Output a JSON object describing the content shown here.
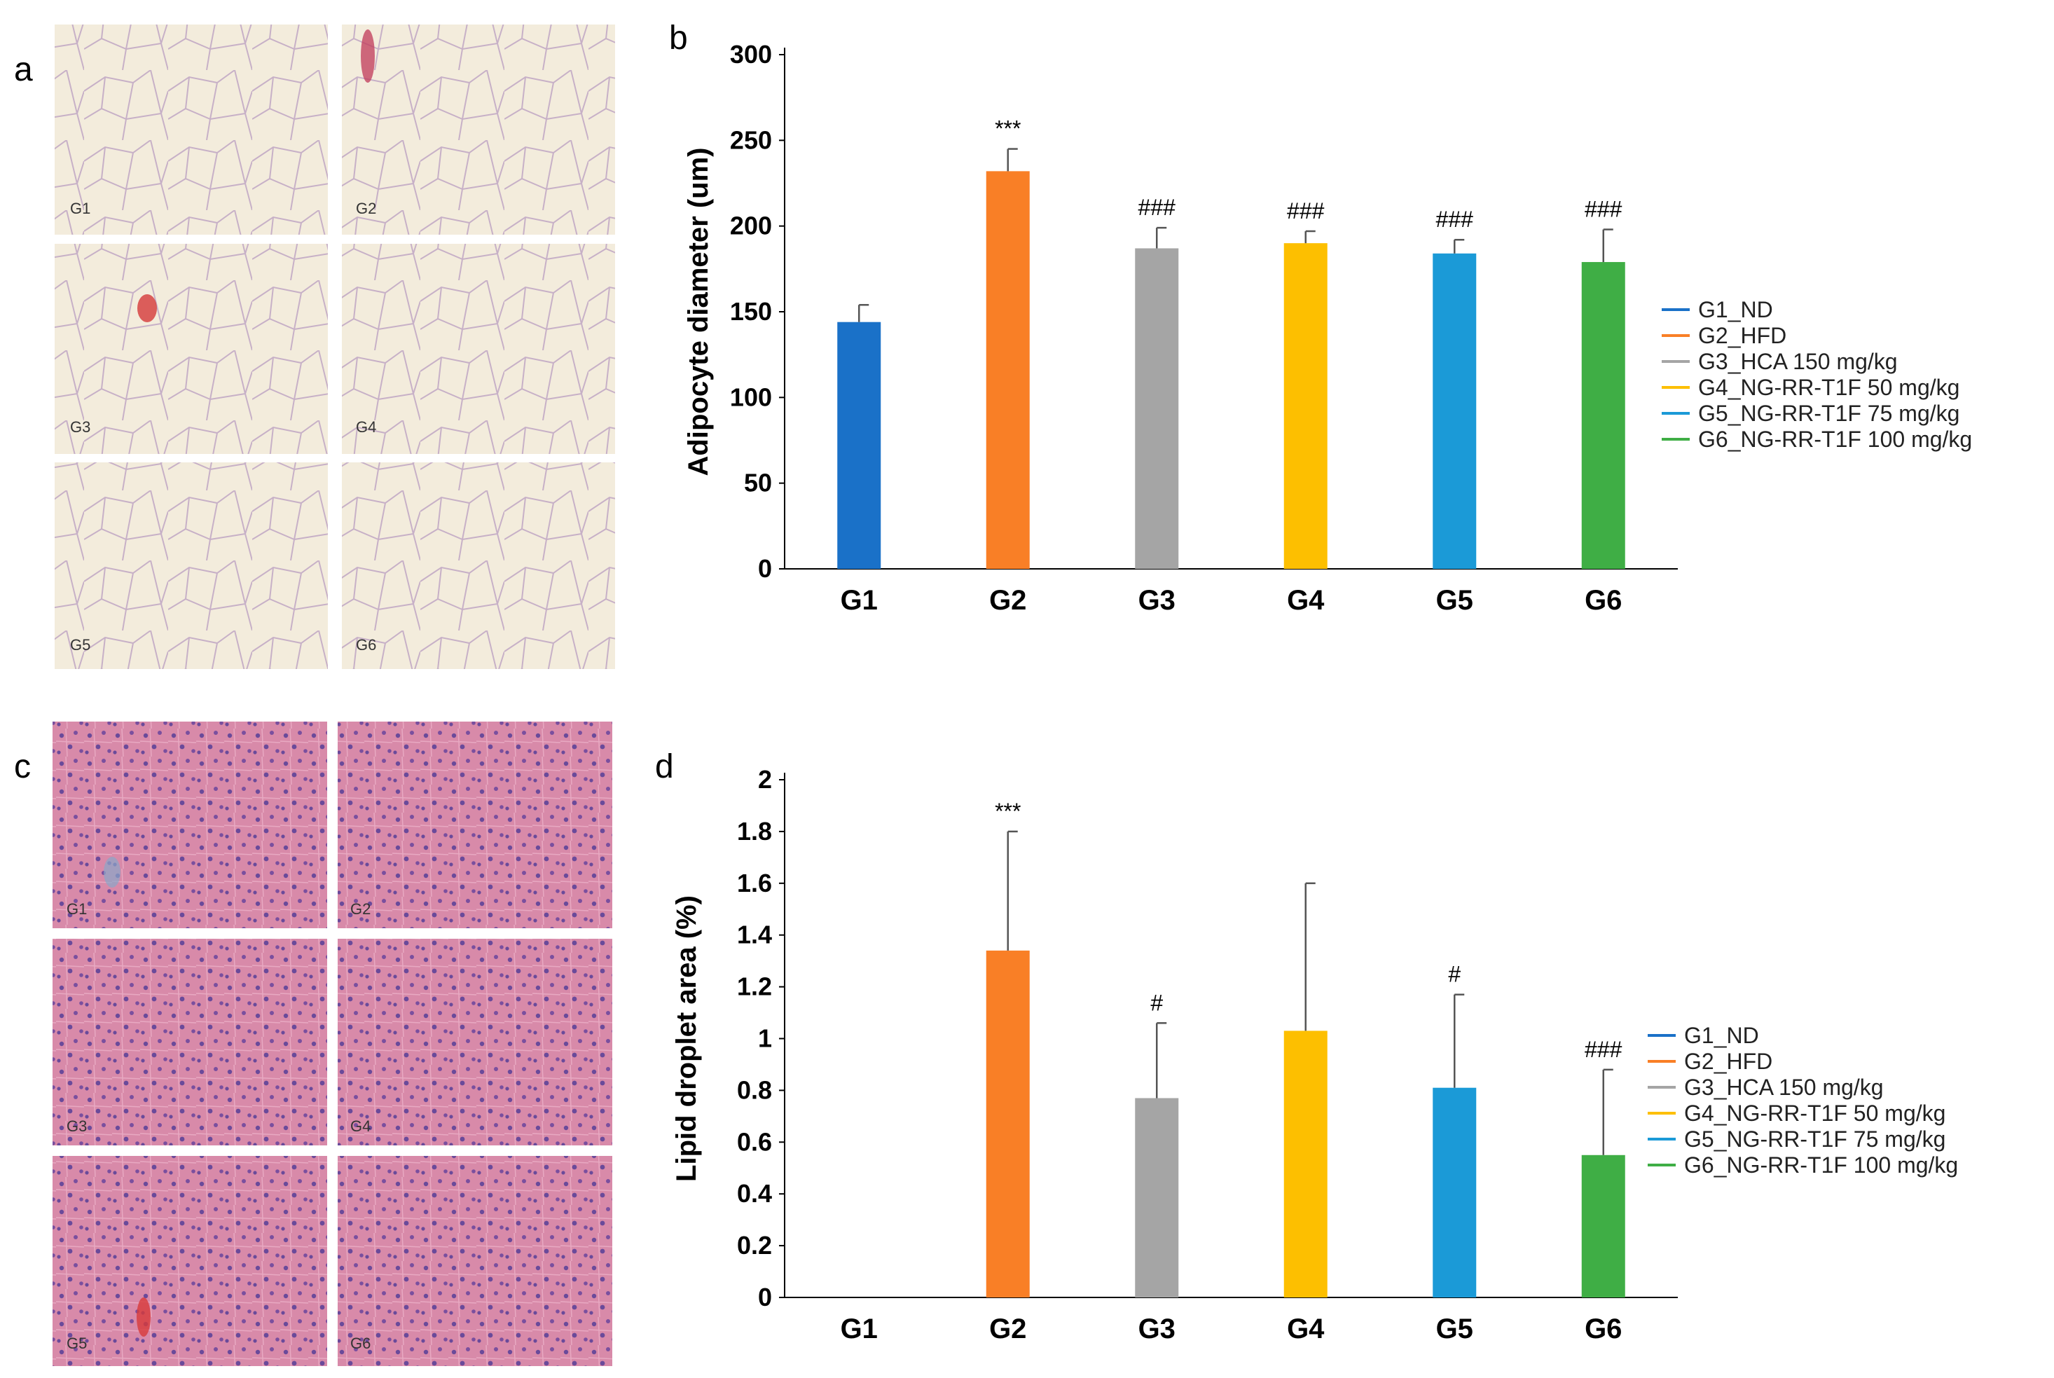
{
  "panels": {
    "a": "a",
    "b": "b",
    "c": "c",
    "d": "d"
  },
  "histology": {
    "adipose_labels": [
      "G1",
      "G2",
      "G3",
      "G4",
      "G5",
      "G6"
    ],
    "liver_labels": [
      "G1",
      "G2",
      "G3",
      "G4",
      "G5",
      "G6"
    ]
  },
  "legend": {
    "entries": [
      "G1_ND",
      "G2_HFD",
      "G3_HCA 150 mg/kg",
      "G4_NG-RR-T1F 50 mg/kg",
      "G5_NG-RR-T1F 75 mg/kg",
      "G6_NG-RR-T1F 100 mg/kg"
    ]
  },
  "colors": {
    "G1": "#1a71c8",
    "G2": "#f97f26",
    "G3": "#a5a5a5",
    "G4": "#fdbf00",
    "G5": "#1b9ad7",
    "G6": "#3fae45",
    "adipose_bg": "#f2ead9",
    "adipose_wall": "#c9b3c8",
    "liver_bg": "#d87fa6"
  },
  "chart_data": [
    {
      "type": "bar",
      "panel": "b",
      "ylabel": "Adipocyte diameter (um)",
      "xlabel": "",
      "categories": [
        "G1",
        "G2",
        "G3",
        "G4",
        "G5",
        "G6"
      ],
      "values": [
        144,
        232,
        187,
        190,
        184,
        179
      ],
      "errors": [
        10,
        13,
        12,
        7,
        8,
        19
      ],
      "significance": [
        "",
        "***",
        "###",
        "###",
        "###",
        "###"
      ],
      "ylim": [
        0,
        300
      ],
      "yticks": [
        0,
        50,
        100,
        150,
        200,
        250,
        300
      ],
      "ytick_labels": [
        "0",
        "50",
        "100",
        "150",
        "200",
        "250",
        "300"
      ]
    },
    {
      "type": "bar",
      "panel": "d",
      "ylabel": "Lipid droplet area (%)",
      "xlabel": "",
      "categories": [
        "G1",
        "G2",
        "G3",
        "G4",
        "G5",
        "G6"
      ],
      "values": [
        0,
        1.34,
        0.77,
        1.03,
        0.81,
        0.55
      ],
      "errors": [
        0,
        0.46,
        0.29,
        0.57,
        0.36,
        0.33
      ],
      "significance": [
        "",
        "***",
        "#",
        "",
        "#",
        "###"
      ],
      "ylim": [
        0,
        2
      ],
      "yticks": [
        0,
        0.2,
        0.4,
        0.6,
        0.8,
        1,
        1.2,
        1.4,
        1.6,
        1.8,
        2
      ],
      "ytick_labels": [
        "0",
        "0.2",
        "0.4",
        "0.6",
        "0.8",
        "1",
        "1.2",
        "1.4",
        "1.6",
        "1.8",
        "2"
      ]
    }
  ]
}
